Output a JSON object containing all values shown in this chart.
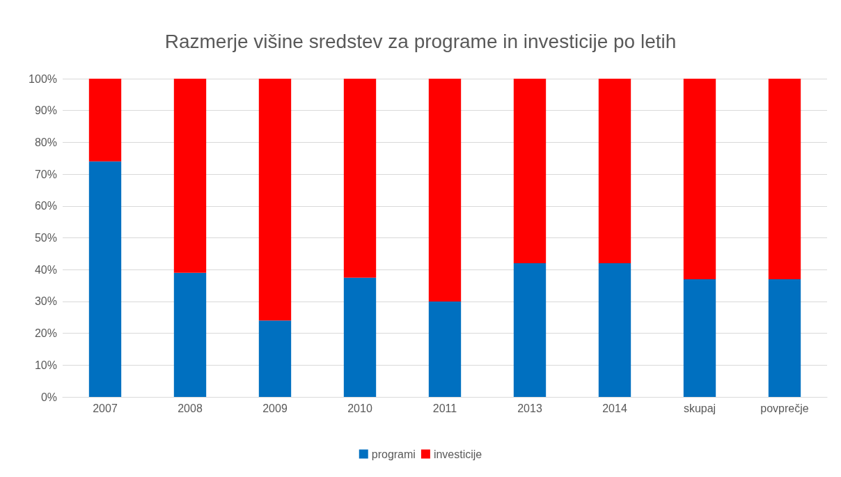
{
  "chart_data": {
    "type": "bar",
    "title": "Razmerje višine sredstev za programe in investicije po letih",
    "categories": [
      "2007",
      "2008",
      "2009",
      "2010",
      "2011",
      "2013",
      "2014",
      "skupaj",
      "povprečje"
    ],
    "series": [
      {
        "name": "programi",
        "color": "#0070c0",
        "values": [
          74,
          39,
          24,
          37.5,
          30,
          42,
          42,
          37,
          37
        ]
      },
      {
        "name": "investicije",
        "color": "#ff0000",
        "values": [
          26,
          61,
          76,
          62.5,
          70,
          58,
          58,
          63,
          63
        ]
      }
    ],
    "stacked": true,
    "ylim": [
      0,
      100
    ],
    "yticks": [
      {
        "value": 0,
        "label": "0%"
      },
      {
        "value": 10,
        "label": "10%"
      },
      {
        "value": 20,
        "label": "20%"
      },
      {
        "value": 30,
        "label": "30%"
      },
      {
        "value": 40,
        "label": "40%"
      },
      {
        "value": 50,
        "label": "50%"
      },
      {
        "value": 60,
        "label": "60%"
      },
      {
        "value": 70,
        "label": "70%"
      },
      {
        "value": 80,
        "label": "80%"
      },
      {
        "value": 90,
        "label": "90%"
      },
      {
        "value": 100,
        "label": "100%"
      }
    ],
    "grid": "y",
    "legend": "bottom"
  }
}
